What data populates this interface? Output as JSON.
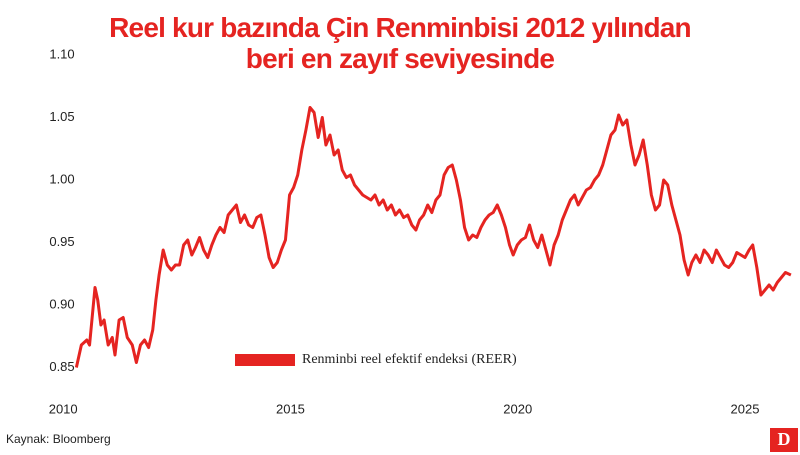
{
  "chart_data": {
    "type": "line",
    "title": "Reel kur bazında Çin Renminbisi 2012 yılından beri en zayıf seviyesinde",
    "source": "Kaynak: Bloomberg",
    "logo": "D",
    "legend_position": "lower center",
    "grid": false,
    "xlim": [
      2009.6,
      2026.1
    ],
    "xticks": [
      2010,
      2015,
      2020,
      2025
    ],
    "ylim": [
      0.84,
      1.1
    ],
    "yticks": [
      {
        "value": 1.1,
        "label": "1.10"
      },
      1.05,
      {
        "value": 1,
        "label": "1.00"
      },
      0.95,
      {
        "value": 0.9,
        "label": "0.90"
      },
      0.85
    ],
    "x": [
      2010.29,
      2010.4,
      2010.52,
      2010.58,
      2010.7,
      2010.76,
      2010.83,
      2010.9,
      2010.99,
      2011.08,
      2011.14,
      2011.23,
      2011.32,
      2011.41,
      2011.52,
      2011.61,
      2011.7,
      2011.79,
      2011.88,
      2011.97,
      2012.04,
      2012.11,
      2012.2,
      2012.29,
      2012.38,
      2012.47,
      2012.56,
      2012.65,
      2012.74,
      2012.83,
      2012.91,
      2013.0,
      2013.09,
      2013.18,
      2013.27,
      2013.36,
      2013.45,
      2013.54,
      2013.63,
      2013.72,
      2013.81,
      2013.9,
      2013.99,
      2014.08,
      2014.17,
      2014.26,
      2014.35,
      2014.44,
      2014.53,
      2014.62,
      2014.71,
      2014.8,
      2014.89,
      2014.98,
      2015.07,
      2015.16,
      2015.25,
      2015.34,
      2015.43,
      2015.52,
      2015.61,
      2015.7,
      2015.78,
      2015.87,
      2015.96,
      2016.05,
      2016.14,
      2016.23,
      2016.32,
      2016.41,
      2016.5,
      2016.59,
      2016.68,
      2016.77,
      2016.86,
      2016.95,
      2017.04,
      2017.13,
      2017.22,
      2017.31,
      2017.4,
      2017.49,
      2017.58,
      2017.67,
      2017.76,
      2017.84,
      2017.93,
      2018.02,
      2018.11,
      2018.2,
      2018.29,
      2018.38,
      2018.47,
      2018.56,
      2018.65,
      2018.74,
      2018.83,
      2018.92,
      2019.01,
      2019.1,
      2019.19,
      2019.28,
      2019.37,
      2019.46,
      2019.55,
      2019.64,
      2019.73,
      2019.82,
      2019.9,
      2019.99,
      2020.08,
      2020.17,
      2020.26,
      2020.35,
      2020.44,
      2020.53,
      2020.62,
      2020.71,
      2020.8,
      2020.89,
      2020.98,
      2021.07,
      2021.16,
      2021.25,
      2021.33,
      2021.42,
      2021.51,
      2021.6,
      2021.69,
      2021.78,
      2021.87,
      2021.96,
      2022.05,
      2022.14,
      2022.22,
      2022.31,
      2022.4,
      2022.49,
      2022.58,
      2022.67,
      2022.76,
      2022.85,
      2022.94,
      2023.03,
      2023.12,
      2023.21,
      2023.3,
      2023.39,
      2023.48,
      2023.57,
      2023.66,
      2023.75,
      2023.83,
      2023.92,
      2024.01,
      2024.1,
      2024.19,
      2024.28,
      2024.37,
      2024.46,
      2024.55,
      2024.64,
      2024.73,
      2024.82,
      2024.91,
      2025.0,
      2025.09,
      2025.17,
      2025.26,
      2025.35,
      2025.44,
      2025.53,
      2025.62,
      2025.71,
      2025.8,
      2025.89,
      2026.01
    ],
    "series": [
      {
        "name": "Renminbi reel efektif endeksi (REER)",
        "color": "#e52421",
        "values": [
          0.85,
          0.868,
          0.872,
          0.868,
          0.914,
          0.904,
          0.884,
          0.888,
          0.868,
          0.874,
          0.86,
          0.888,
          0.89,
          0.874,
          0.868,
          0.854,
          0.868,
          0.872,
          0.866,
          0.88,
          0.904,
          0.924,
          0.944,
          0.932,
          0.928,
          0.932,
          0.932,
          0.948,
          0.952,
          0.94,
          0.946,
          0.954,
          0.944,
          0.938,
          0.948,
          0.956,
          0.962,
          0.958,
          0.972,
          0.976,
          0.98,
          0.966,
          0.972,
          0.964,
          0.962,
          0.97,
          0.972,
          0.956,
          0.938,
          0.93,
          0.934,
          0.944,
          0.952,
          0.988,
          0.994,
          1.004,
          1.024,
          1.04,
          1.058,
          1.054,
          1.034,
          1.05,
          1.028,
          1.036,
          1.02,
          1.024,
          1.008,
          1.002,
          1.004,
          0.996,
          0.992,
          0.988,
          0.986,
          0.984,
          0.988,
          0.98,
          0.984,
          0.976,
          0.98,
          0.972,
          0.976,
          0.97,
          0.972,
          0.964,
          0.96,
          0.968,
          0.972,
          0.98,
          0.974,
          0.984,
          0.988,
          1.004,
          1.01,
          1.012,
          1.0,
          0.984,
          0.962,
          0.952,
          0.956,
          0.954,
          0.962,
          0.968,
          0.972,
          0.974,
          0.98,
          0.972,
          0.962,
          0.948,
          0.94,
          0.948,
          0.952,
          0.954,
          0.964,
          0.952,
          0.946,
          0.956,
          0.944,
          0.932,
          0.948,
          0.956,
          0.968,
          0.976,
          0.984,
          0.988,
          0.98,
          0.986,
          0.992,
          0.994,
          1.0,
          1.004,
          1.012,
          1.024,
          1.036,
          1.04,
          1.052,
          1.044,
          1.048,
          1.028,
          1.012,
          1.02,
          1.032,
          1.012,
          0.988,
          0.976,
          0.98,
          1.0,
          0.996,
          0.98,
          0.968,
          0.956,
          0.936,
          0.924,
          0.934,
          0.94,
          0.934,
          0.944,
          0.94,
          0.934,
          0.944,
          0.938,
          0.932,
          0.93,
          0.934,
          0.942,
          0.94,
          0.938,
          0.944,
          0.948,
          0.93,
          0.908,
          0.912,
          0.916,
          0.912,
          0.918,
          0.922,
          0.926,
          0.924
        ]
      }
    ]
  }
}
